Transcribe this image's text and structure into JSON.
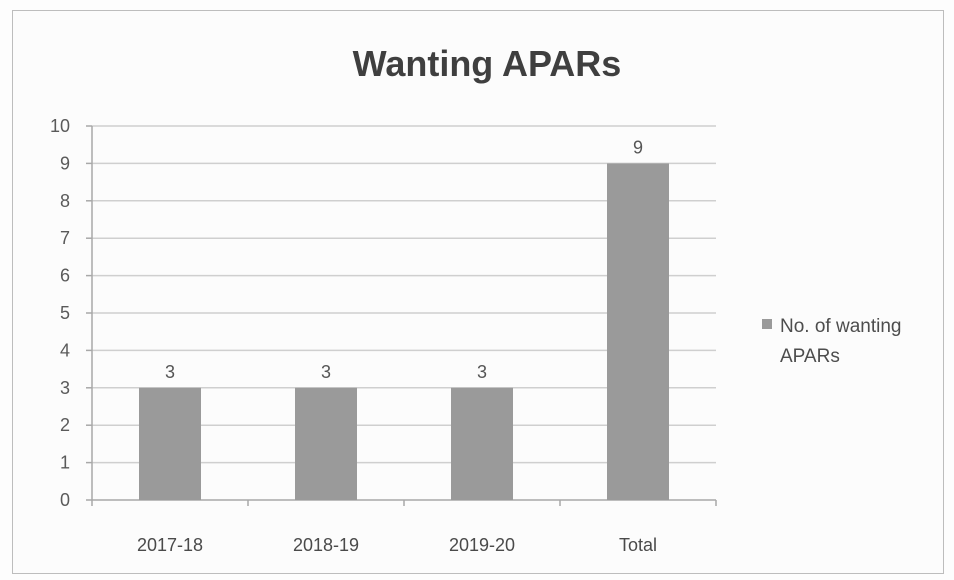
{
  "chart_data": {
    "type": "bar",
    "title": "Wanting APARs",
    "categories": [
      "2017-18",
      "2018-19",
      "2019-20",
      "Total"
    ],
    "series": [
      {
        "name": "No. of wanting APARs",
        "values": [
          3,
          3,
          3,
          9
        ],
        "color": "#9a9a9a"
      }
    ],
    "xlabel": "",
    "ylabel": "",
    "ylim": [
      0,
      10
    ],
    "yticks": [
      0,
      1,
      2,
      3,
      4,
      5,
      6,
      7,
      8,
      9,
      10
    ],
    "data_labels": true,
    "grid": true,
    "legend": {
      "position": "right",
      "lines": [
        "No. of wanting",
        "APARs"
      ]
    }
  }
}
